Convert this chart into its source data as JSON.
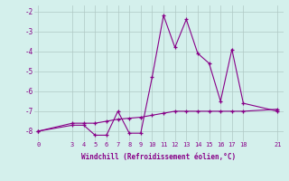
{
  "xlabel": "Windchill (Refroidissement éolien,°C)",
  "line1_x": [
    0,
    3,
    4,
    5,
    6,
    7,
    8,
    9,
    10,
    11,
    12,
    13,
    14,
    15,
    16,
    17,
    18,
    21
  ],
  "line1_y": [
    -8.0,
    -7.7,
    -7.7,
    -8.2,
    -8.2,
    -7.0,
    -8.1,
    -8.1,
    -5.3,
    -2.2,
    -3.8,
    -2.4,
    -4.1,
    -4.6,
    -6.5,
    -3.9,
    -6.6,
    -7.0
  ],
  "line2_x": [
    0,
    3,
    4,
    5,
    6,
    7,
    8,
    9,
    10,
    11,
    12,
    13,
    14,
    15,
    16,
    17,
    18,
    21
  ],
  "line2_y": [
    -8.0,
    -7.6,
    -7.6,
    -7.6,
    -7.5,
    -7.4,
    -7.35,
    -7.3,
    -7.2,
    -7.1,
    -7.0,
    -7.0,
    -7.0,
    -7.0,
    -7.0,
    -7.0,
    -7.0,
    -6.9
  ],
  "line_color": "#880088",
  "bg_color": "#d4f0ec",
  "grid_color": "#b0c8c4",
  "ylim": [
    -8.5,
    -1.7
  ],
  "xlim": [
    -0.3,
    21.5
  ],
  "yticks": [
    -8,
    -7,
    -6,
    -5,
    -4,
    -3,
    -2
  ],
  "xticks": [
    0,
    3,
    4,
    5,
    6,
    7,
    8,
    9,
    10,
    11,
    12,
    13,
    14,
    15,
    16,
    17,
    18,
    21
  ]
}
